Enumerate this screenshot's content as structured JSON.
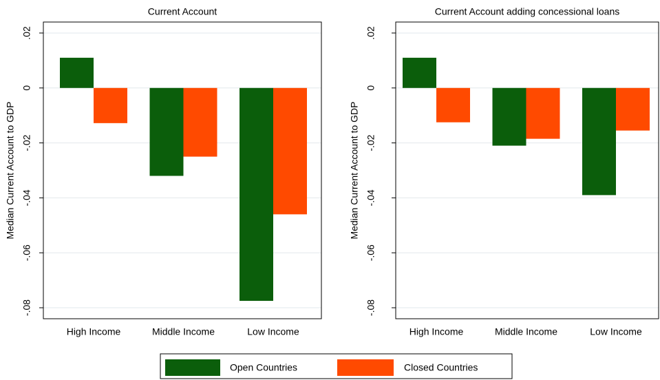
{
  "chart_data": [
    {
      "type": "bar",
      "title": "Current Account",
      "ylabel": "Median Current Account to GDP",
      "categories": [
        "High Income",
        "Middle Income",
        "Low Income"
      ],
      "series": [
        {
          "name": "Open Countries",
          "color": "#0b5e0b",
          "values": [
            0.011,
            -0.032,
            -0.0775
          ]
        },
        {
          "name": "Closed Countries",
          "color": "#ff4a00",
          "values": [
            -0.0128,
            -0.025,
            -0.046
          ]
        }
      ],
      "ylim": [
        -0.084,
        0.024
      ],
      "yticks": [
        {
          "value": 0.02,
          "label": ".02"
        },
        0,
        {
          "value": -0.02,
          "label": "-.02"
        },
        {
          "value": -0.04,
          "label": "-.04"
        },
        {
          "value": -0.06,
          "label": "-.06"
        },
        {
          "value": -0.08,
          "label": "-.08"
        }
      ],
      "grid": true
    },
    {
      "type": "bar",
      "title": "Current Account adding concessional loans",
      "ylabel": "Median Current Account to GDP",
      "categories": [
        "High Income",
        "Middle Income",
        "Low Income"
      ],
      "series": [
        {
          "name": "Open Countries",
          "color": "#0b5e0b",
          "values": [
            0.011,
            -0.021,
            -0.039
          ]
        },
        {
          "name": "Closed Countries",
          "color": "#ff4a00",
          "values": [
            -0.0125,
            -0.0185,
            -0.0155
          ]
        }
      ],
      "ylim": [
        -0.084,
        0.024
      ],
      "yticks": [
        {
          "value": 0.02,
          "label": ".02"
        },
        0,
        {
          "value": -0.02,
          "label": "-.02"
        },
        {
          "value": -0.04,
          "label": "-.04"
        },
        {
          "value": -0.06,
          "label": "-.06"
        },
        {
          "value": -0.08,
          "label": "-.08"
        }
      ],
      "grid": true
    }
  ]
}
